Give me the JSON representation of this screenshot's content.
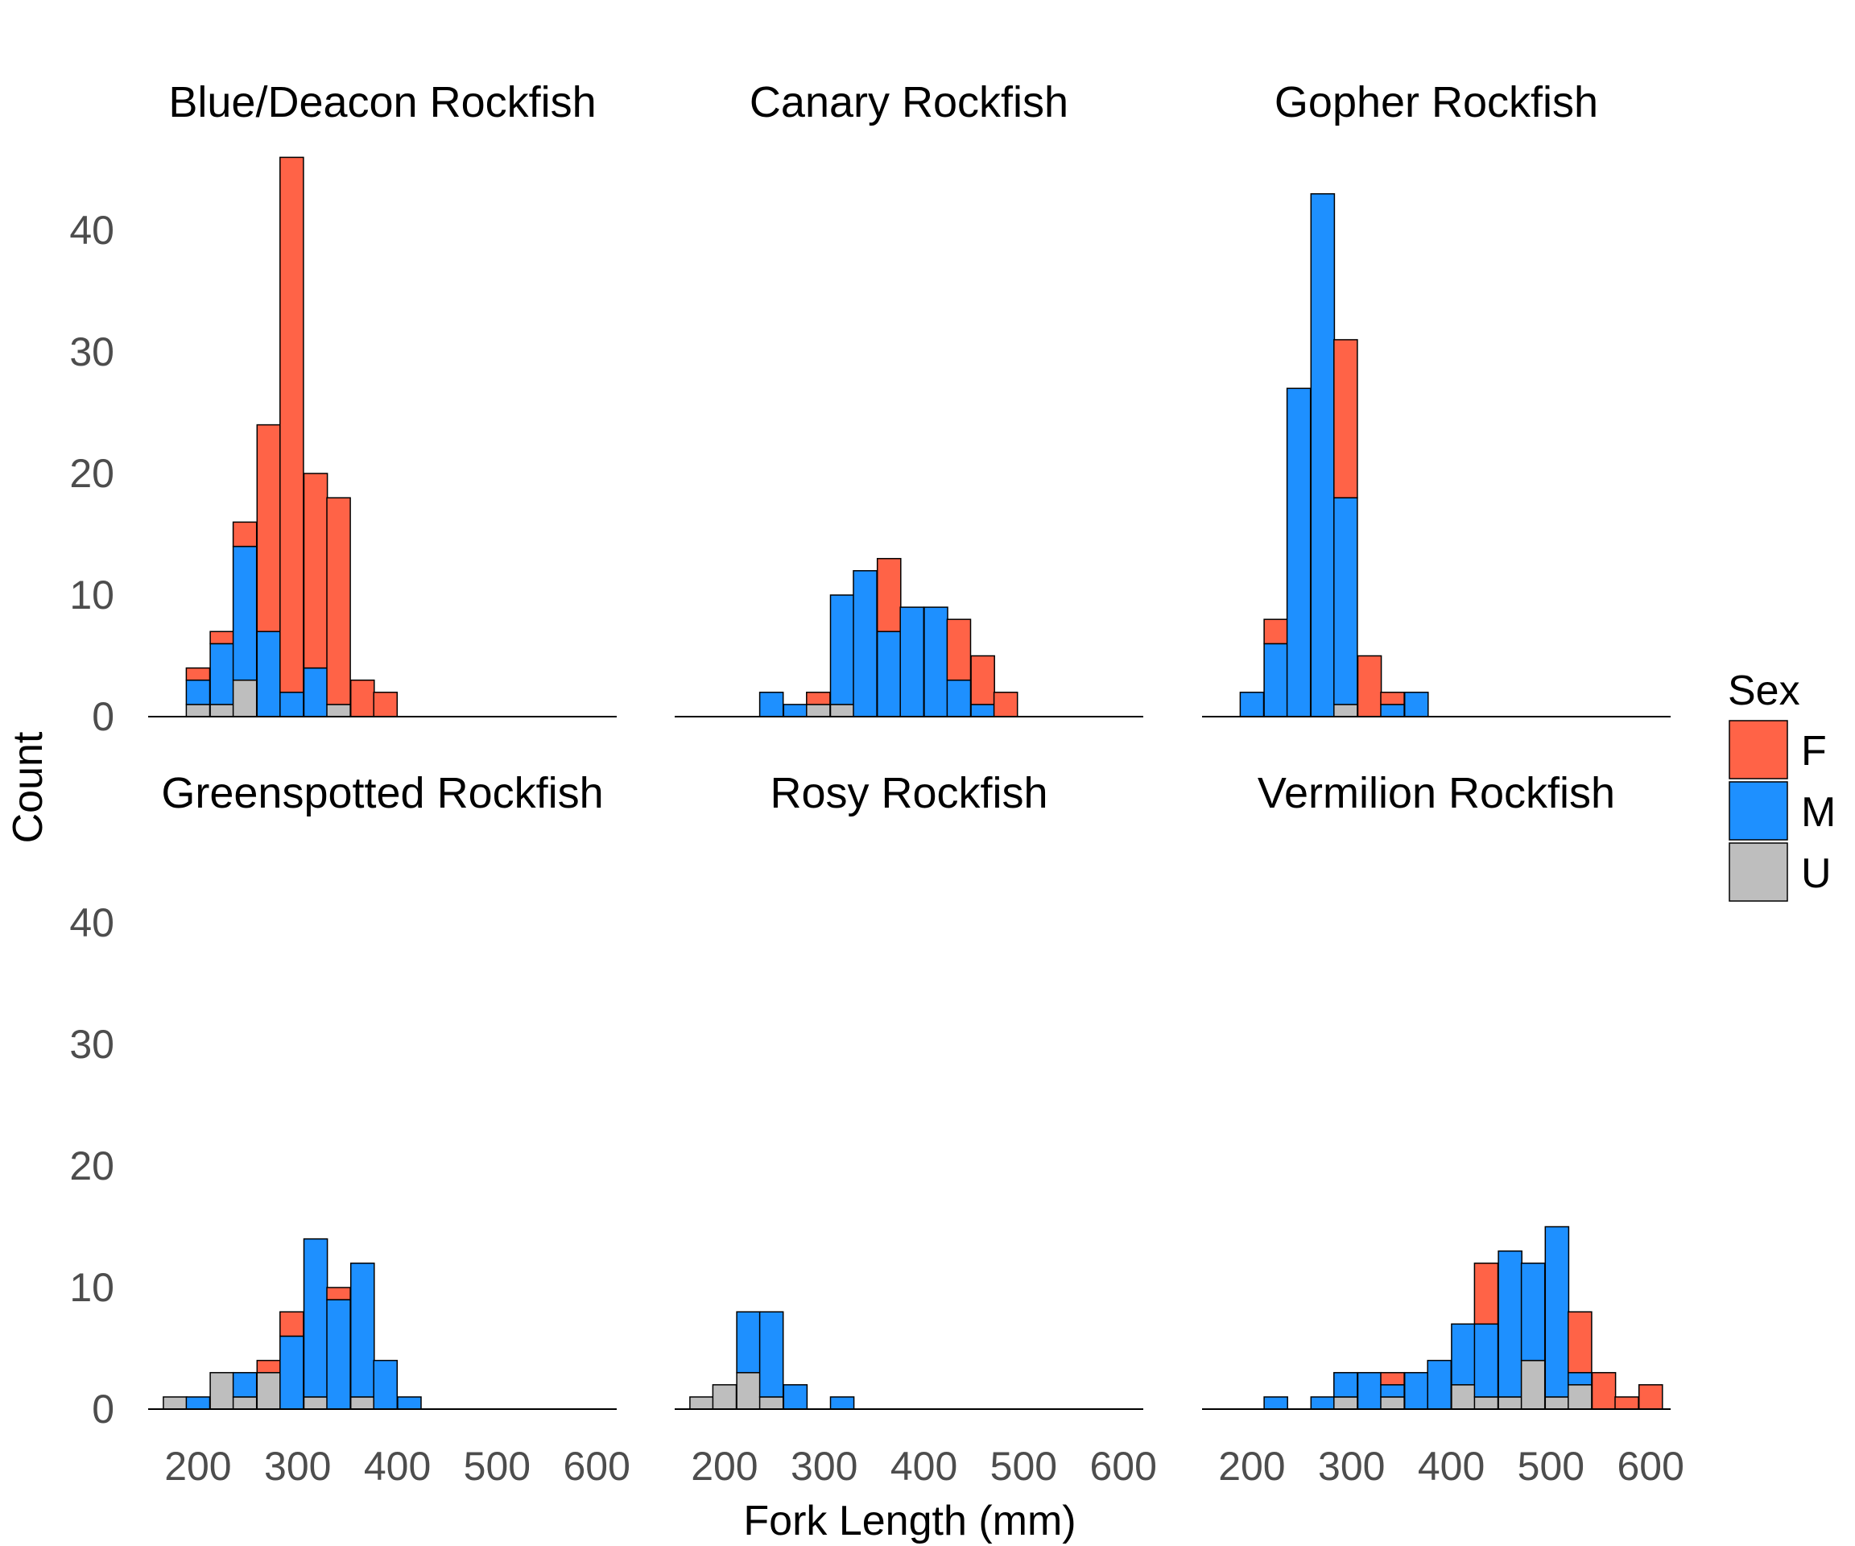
{
  "chart_data": {
    "type": "bar",
    "stacked": true,
    "xlabel": "Fork Length (mm)",
    "ylabel": "Count",
    "xlim": [
      150,
      620
    ],
    "ylim": [
      0,
      46
    ],
    "xticks": [
      200,
      300,
      400,
      500,
      600
    ],
    "yticks": [
      0,
      10,
      20,
      30,
      40
    ],
    "bin_width": 23.5,
    "legend": {
      "title": "Sex",
      "position": "right",
      "entries": [
        {
          "key": "F",
          "label": "F",
          "color": "#FF6347"
        },
        {
          "key": "M",
          "label": "M",
          "color": "#1E90FF"
        },
        {
          "key": "U",
          "label": "U",
          "color": "#BEBEBE"
        }
      ]
    },
    "stack_order": [
      "U",
      "M",
      "F"
    ],
    "panels": [
      {
        "title": "Blue/Deacon Rockfish",
        "bins": [
          {
            "x": 200,
            "U": 1,
            "M": 2,
            "F": 1
          },
          {
            "x": 224,
            "U": 1,
            "M": 5,
            "F": 1
          },
          {
            "x": 247,
            "U": 3,
            "M": 11,
            "F": 2
          },
          {
            "x": 271,
            "U": 0,
            "M": 7,
            "F": 17
          },
          {
            "x": 294,
            "U": 0,
            "M": 2,
            "F": 44
          },
          {
            "x": 318,
            "U": 0,
            "M": 4,
            "F": 16
          },
          {
            "x": 341,
            "U": 1,
            "M": 0,
            "F": 17
          },
          {
            "x": 365,
            "U": 0,
            "M": 0,
            "F": 3
          },
          {
            "x": 388,
            "U": 0,
            "M": 0,
            "F": 2
          }
        ]
      },
      {
        "title": "Canary Rockfish",
        "bins": [
          {
            "x": 247,
            "U": 0,
            "M": 2,
            "F": 0
          },
          {
            "x": 271,
            "U": 0,
            "M": 1,
            "F": 0
          },
          {
            "x": 294,
            "U": 1,
            "M": 0,
            "F": 1
          },
          {
            "x": 318,
            "U": 1,
            "M": 9,
            "F": 0
          },
          {
            "x": 341,
            "U": 0,
            "M": 12,
            "F": 0
          },
          {
            "x": 365,
            "U": 0,
            "M": 7,
            "F": 6
          },
          {
            "x": 388,
            "U": 0,
            "M": 9,
            "F": 0
          },
          {
            "x": 412,
            "U": 0,
            "M": 9,
            "F": 0
          },
          {
            "x": 435,
            "U": 0,
            "M": 3,
            "F": 5
          },
          {
            "x": 459,
            "U": 0,
            "M": 1,
            "F": 4
          },
          {
            "x": 482,
            "U": 0,
            "M": 0,
            "F": 2
          }
        ]
      },
      {
        "title": "Gopher Rockfish",
        "bins": [
          {
            "x": 200,
            "U": 0,
            "M": 2,
            "F": 0
          },
          {
            "x": 224,
            "U": 0,
            "M": 6,
            "F": 2
          },
          {
            "x": 247,
            "U": 0,
            "M": 27,
            "F": 0
          },
          {
            "x": 271,
            "U": 0,
            "M": 43,
            "F": 0
          },
          {
            "x": 294,
            "U": 1,
            "M": 17,
            "F": 13
          },
          {
            "x": 318,
            "U": 0,
            "M": 0,
            "F": 5
          },
          {
            "x": 341,
            "U": 0,
            "M": 1,
            "F": 1
          },
          {
            "x": 365,
            "U": 0,
            "M": 2,
            "F": 0
          }
        ]
      },
      {
        "title": "Greenspotted Rockfish",
        "bins": [
          {
            "x": 177,
            "U": 1,
            "M": 0,
            "F": 0
          },
          {
            "x": 200,
            "U": 0,
            "M": 1,
            "F": 0
          },
          {
            "x": 224,
            "U": 3,
            "M": 0,
            "F": 0
          },
          {
            "x": 247,
            "U": 1,
            "M": 2,
            "F": 0
          },
          {
            "x": 271,
            "U": 3,
            "M": 0,
            "F": 1
          },
          {
            "x": 294,
            "U": 0,
            "M": 6,
            "F": 2
          },
          {
            "x": 318,
            "U": 1,
            "M": 13,
            "F": 0
          },
          {
            "x": 341,
            "U": 0,
            "M": 9,
            "F": 1
          },
          {
            "x": 365,
            "U": 1,
            "M": 11,
            "F": 0
          },
          {
            "x": 388,
            "U": 0,
            "M": 4,
            "F": 0
          },
          {
            "x": 412,
            "U": 0,
            "M": 1,
            "F": 0
          }
        ]
      },
      {
        "title": "Rosy Rockfish",
        "bins": [
          {
            "x": 177,
            "U": 1,
            "M": 0,
            "F": 0
          },
          {
            "x": 200,
            "U": 2,
            "M": 0,
            "F": 0
          },
          {
            "x": 224,
            "U": 3,
            "M": 5,
            "F": 0
          },
          {
            "x": 247,
            "U": 1,
            "M": 7,
            "F": 0
          },
          {
            "x": 271,
            "U": 0,
            "M": 2,
            "F": 0
          },
          {
            "x": 318,
            "U": 0,
            "M": 1,
            "F": 0
          }
        ]
      },
      {
        "title": "Vermilion Rockfish",
        "bins": [
          {
            "x": 224,
            "U": 0,
            "M": 1,
            "F": 0
          },
          {
            "x": 271,
            "U": 0,
            "M": 1,
            "F": 0
          },
          {
            "x": 294,
            "U": 1,
            "M": 2,
            "F": 0
          },
          {
            "x": 318,
            "U": 0,
            "M": 3,
            "F": 0
          },
          {
            "x": 341,
            "U": 1,
            "M": 1,
            "F": 1
          },
          {
            "x": 365,
            "U": 0,
            "M": 3,
            "F": 0
          },
          {
            "x": 388,
            "U": 0,
            "M": 4,
            "F": 0
          },
          {
            "x": 412,
            "U": 2,
            "M": 5,
            "F": 0
          },
          {
            "x": 435,
            "U": 1,
            "M": 6,
            "F": 5
          },
          {
            "x": 459,
            "U": 1,
            "M": 12,
            "F": 0
          },
          {
            "x": 482,
            "U": 4,
            "M": 8,
            "F": 0
          },
          {
            "x": 506,
            "U": 1,
            "M": 14,
            "F": 0
          },
          {
            "x": 529,
            "U": 2,
            "M": 1,
            "F": 5
          },
          {
            "x": 553,
            "U": 0,
            "M": 0,
            "F": 3
          },
          {
            "x": 576,
            "U": 0,
            "M": 0,
            "F": 1
          },
          {
            "x": 600,
            "U": 0,
            "M": 0,
            "F": 2
          }
        ]
      }
    ]
  }
}
